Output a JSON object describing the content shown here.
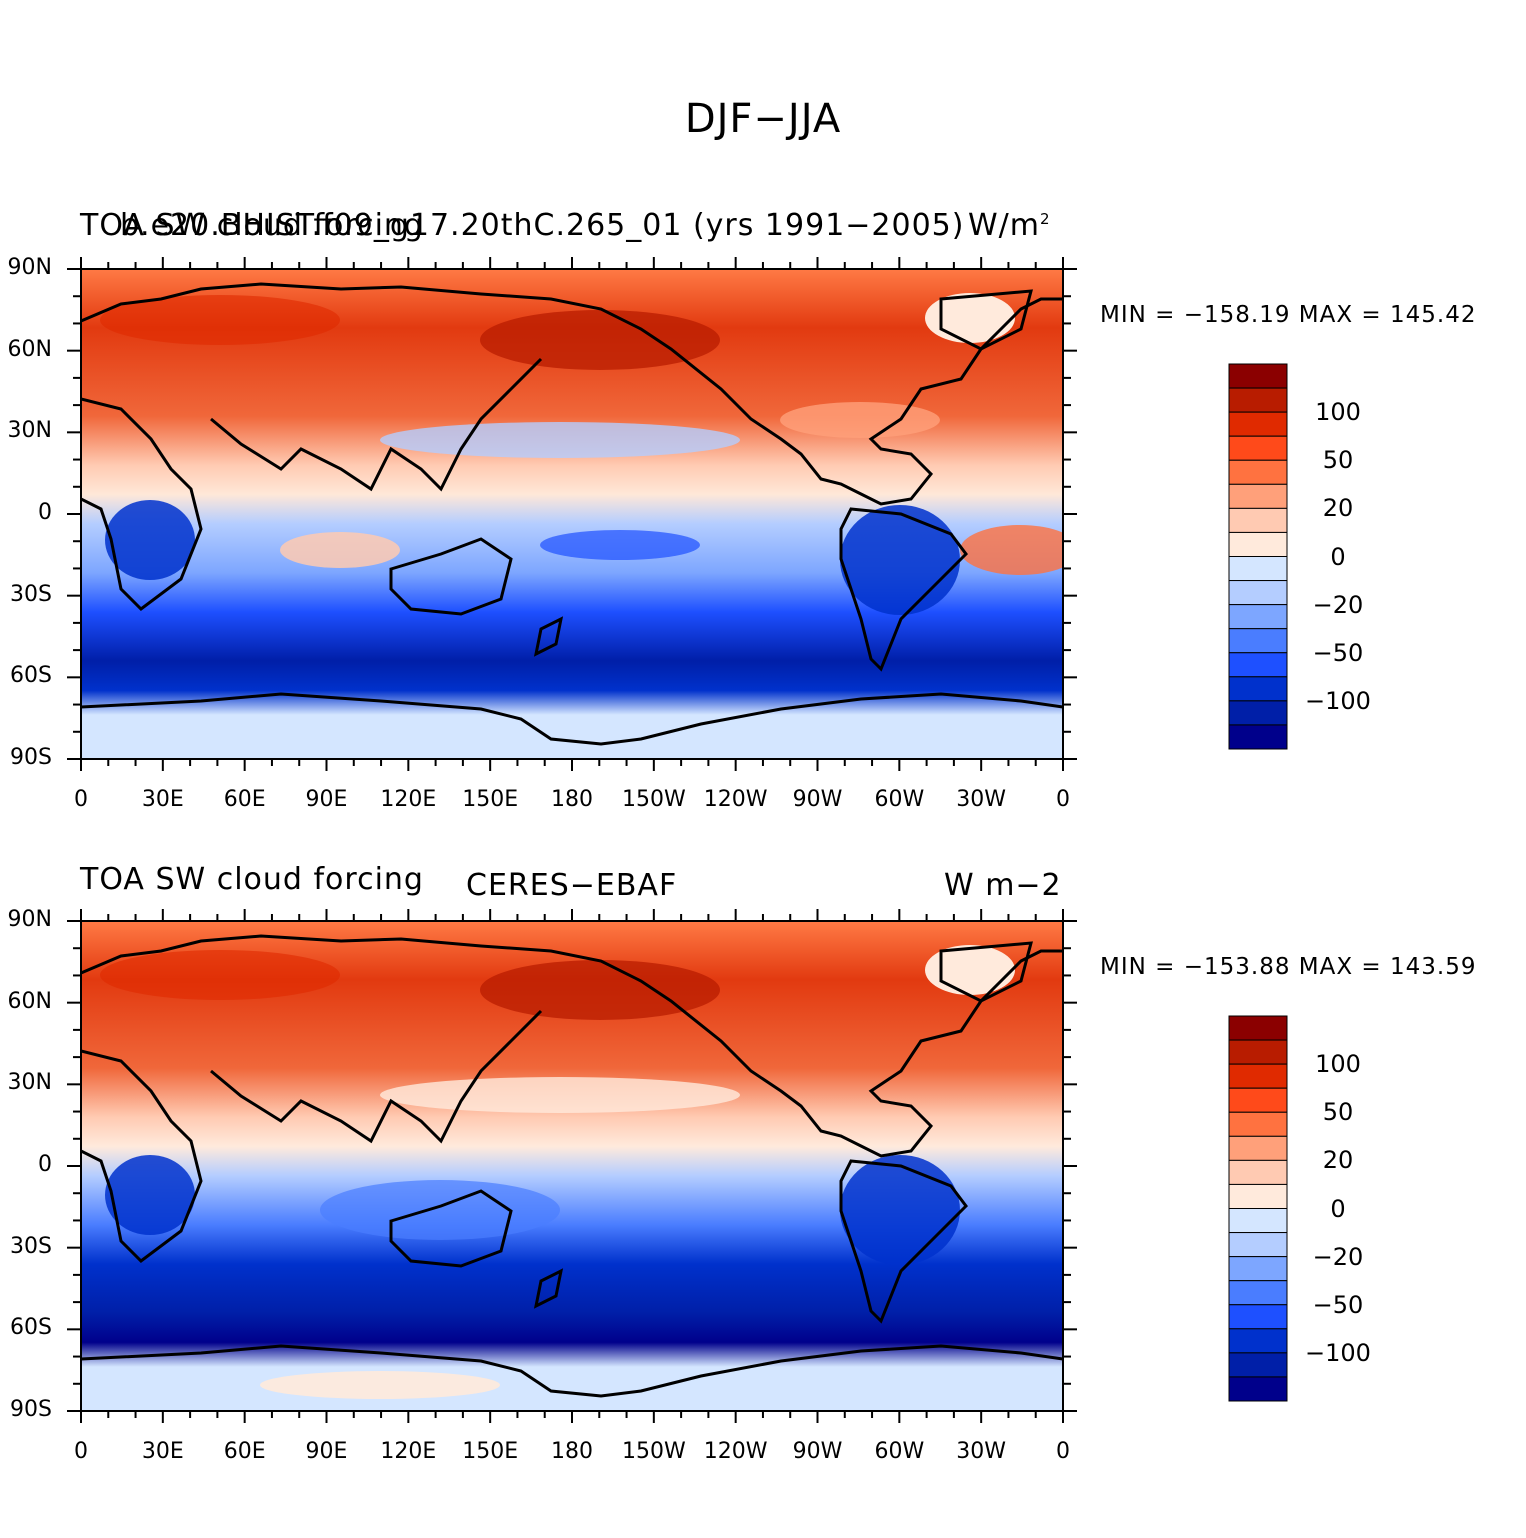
{
  "title": "DJF−JJA",
  "colors": {
    "levels": [
      "#00008b",
      "#001fa8",
      "#0031cc",
      "#1e50ff",
      "#4a7dff",
      "#7da6ff",
      "#b4cdff",
      "#d4e6ff",
      "#ffeadc",
      "#ffcab2",
      "#ffa07a",
      "#ff7240",
      "#ff4a1a",
      "#e02a00",
      "#b81c00",
      "#8b0000"
    ]
  },
  "panels": [
    {
      "name": "model",
      "left_title": "TOA SW cloud forcing",
      "center_title": "b.e20.BHIST.f09_g17.20thC.265_01 (yrs 1991−2005)",
      "units": "W/m",
      "units_sup": "2",
      "minmax": "MIN = −158.19  MAX = 145.42"
    },
    {
      "name": "obs",
      "left_title": "TOA SW cloud forcing",
      "center_title": "CERES−EBAF",
      "units": "W m−2",
      "units_sup": "",
      "minmax": "MIN = −153.88  MAX = 143.59"
    }
  ],
  "x_ticks": [
    "0",
    "30E",
    "60E",
    "90E",
    "120E",
    "150E",
    "180",
    "150W",
    "120W",
    "90W",
    "60W",
    "30W",
    "0"
  ],
  "y_ticks": [
    "90N",
    "60N",
    "30N",
    "0",
    "30S",
    "60S",
    "90S"
  ],
  "colorbar_labels": [
    "100",
    "50",
    "20",
    "0",
    "−20",
    "−50",
    "−100"
  ]
}
